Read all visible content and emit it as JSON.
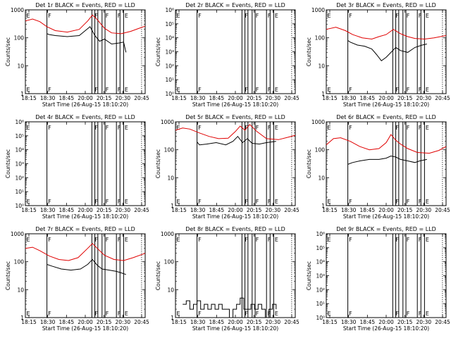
{
  "figure": {
    "time_ticks": [
      "18:15",
      "18:30",
      "18:45",
      "20:00",
      "20:15",
      "20:30",
      "20:45"
    ],
    "colors": {
      "events": "#000000",
      "lld": "#e00000",
      "frame": "#000000"
    }
  },
  "chart_data": [
    {
      "type": "line",
      "title": "Det 1r BLACK = Events, RED = LLD",
      "xlabel": "Start Time (26-Aug-15 18:10:20)",
      "ylabel": "Counts/sec",
      "y_scale": "log",
      "ylim": [
        1,
        1000
      ],
      "y_ticks": [
        "1",
        "10",
        "100",
        "1000"
      ],
      "markers": [
        {
          "label": "E",
          "x": 0.0
        },
        {
          "label": "F",
          "x": 0.18
        },
        {
          "label": "F",
          "x": 0.57
        },
        {
          "label": "F",
          "x": 0.66
        },
        {
          "label": "F",
          "x": 0.76
        },
        {
          "label": "E",
          "x": 0.82
        }
      ],
      "vlines": [
        0.18,
        0.555,
        0.58,
        0.605,
        0.64,
        0.665,
        0.76,
        0.79,
        0.82,
        0.97
      ],
      "series": [
        {
          "name": "Events",
          "color": "#000000",
          "x": [
            0.18,
            0.2,
            0.25,
            0.35,
            0.45,
            0.5,
            0.54,
            0.58,
            0.62,
            0.66,
            0.72,
            0.78,
            0.82,
            0.84
          ],
          "y": [
            140,
            130,
            120,
            110,
            120,
            180,
            250,
            120,
            75,
            90,
            60,
            65,
            70,
            30
          ]
        },
        {
          "name": "LLD",
          "color": "#e00000",
          "x": [
            0.0,
            0.06,
            0.12,
            0.18,
            0.25,
            0.35,
            0.45,
            0.52,
            0.56,
            0.6,
            0.66,
            0.72,
            0.8,
            0.88,
            0.95,
            1.0
          ],
          "y": [
            400,
            470,
            380,
            250,
            180,
            160,
            200,
            400,
            650,
            450,
            220,
            150,
            140,
            170,
            220,
            260
          ]
        }
      ]
    },
    {
      "type": "line",
      "title": "Det 2r BLACK = Events, RED = LLD",
      "xlabel": "Start Time (26-Aug-15 18:10:20)",
      "ylabel": "Counts/sec",
      "y_scale": "log",
      "ylim": [
        1,
        1000000
      ],
      "y_ticks": [
        "10⁰",
        "10¹",
        "10²",
        "10³",
        "10⁴",
        "10⁵",
        "10⁶"
      ],
      "markers": [
        {
          "label": "E",
          "x": 0.0
        },
        {
          "label": "F",
          "x": 0.18
        },
        {
          "label": "F",
          "x": 0.57
        },
        {
          "label": "F",
          "x": 0.66
        },
        {
          "label": "F",
          "x": 0.76
        },
        {
          "label": "E",
          "x": 0.82
        }
      ],
      "vlines": [
        0.18,
        0.555,
        0.58,
        0.605,
        0.64,
        0.665,
        0.76,
        0.79,
        0.82,
        0.97
      ],
      "series": []
    },
    {
      "type": "line",
      "title": "Det 3r BLACK = Events, RED = LLD",
      "xlabel": "Start Time (26-Aug-15 18:10:20)",
      "ylabel": "Counts/sec",
      "y_scale": "log",
      "ylim": [
        1,
        1000
      ],
      "y_ticks": [
        "1",
        "10",
        "100",
        "1000"
      ],
      "markers": [
        {
          "label": "E",
          "x": 0.0
        },
        {
          "label": "F",
          "x": 0.18
        },
        {
          "label": "F",
          "x": 0.57
        },
        {
          "label": "F",
          "x": 0.66
        },
        {
          "label": "F",
          "x": 0.76
        },
        {
          "label": "E",
          "x": 0.82
        }
      ],
      "vlines": [
        0.18,
        0.555,
        0.58,
        0.605,
        0.64,
        0.665,
        0.76,
        0.79,
        0.82,
        0.97
      ],
      "series": [
        {
          "name": "Events",
          "color": "#000000",
          "x": [
            0.18,
            0.2,
            0.26,
            0.32,
            0.38,
            0.42,
            0.46,
            0.5,
            0.54,
            0.58,
            0.62,
            0.68,
            0.74,
            0.8,
            0.84
          ],
          "y": [
            80,
            70,
            55,
            50,
            40,
            25,
            15,
            20,
            30,
            45,
            35,
            30,
            45,
            55,
            60
          ]
        },
        {
          "name": "LLD",
          "color": "#e00000",
          "x": [
            0.0,
            0.08,
            0.16,
            0.22,
            0.3,
            0.38,
            0.44,
            0.5,
            0.56,
            0.62,
            0.68,
            0.74,
            0.82,
            0.9,
            1.0
          ],
          "y": [
            200,
            240,
            180,
            130,
            100,
            90,
            110,
            130,
            200,
            140,
            110,
            95,
            90,
            100,
            120
          ]
        }
      ]
    },
    {
      "type": "line",
      "title": "Det 4r BLACK = Events, RED = LLD",
      "xlabel": "Start Time (26-Aug-15 18:10:20)",
      "ylabel": "Counts/sec",
      "y_scale": "log",
      "ylim": [
        1,
        1000000
      ],
      "y_ticks": [
        "10⁰",
        "10¹",
        "10²",
        "10³",
        "10⁴",
        "10⁵",
        "10⁶"
      ],
      "markers": [
        {
          "label": "E",
          "x": 0.0
        },
        {
          "label": "F",
          "x": 0.18
        },
        {
          "label": "F",
          "x": 0.57
        },
        {
          "label": "F",
          "x": 0.66
        },
        {
          "label": "F",
          "x": 0.76
        },
        {
          "label": "E",
          "x": 0.82
        }
      ],
      "vlines": [
        0.18,
        0.555,
        0.58,
        0.605,
        0.64,
        0.665,
        0.76,
        0.79,
        0.82,
        0.97
      ],
      "series": []
    },
    {
      "type": "line",
      "title": "Det 5r BLACK = Events, RED = LLD",
      "xlabel": "Start Time (26-Aug-15 18:10:20)",
      "ylabel": "Counts/sec",
      "y_scale": "log",
      "ylim": [
        1,
        1000
      ],
      "y_ticks": [
        "1",
        "10",
        "100",
        "1000"
      ],
      "markers": [
        {
          "label": "E",
          "x": 0.0
        },
        {
          "label": "F",
          "x": 0.18
        },
        {
          "label": "F",
          "x": 0.57
        },
        {
          "label": "F",
          "x": 0.66
        },
        {
          "label": "F",
          "x": 0.76
        },
        {
          "label": "E",
          "x": 0.82
        }
      ],
      "vlines": [
        0.18,
        0.555,
        0.58,
        0.605,
        0.64,
        0.665,
        0.76,
        0.79,
        0.82,
        0.97
      ],
      "series": [
        {
          "name": "Events",
          "color": "#000000",
          "x": [
            0.18,
            0.2,
            0.26,
            0.34,
            0.42,
            0.48,
            0.52,
            0.56,
            0.6,
            0.64,
            0.7,
            0.76,
            0.8,
            0.84
          ],
          "y": [
            190,
            150,
            160,
            180,
            150,
            200,
            300,
            180,
            250,
            170,
            160,
            180,
            190,
            200
          ]
        },
        {
          "name": "LLD",
          "color": "#e00000",
          "x": [
            0.0,
            0.06,
            0.12,
            0.2,
            0.28,
            0.36,
            0.44,
            0.5,
            0.54,
            0.58,
            0.62,
            0.68,
            0.76,
            0.86,
            0.94,
            1.0
          ],
          "y": [
            500,
            600,
            550,
            400,
            300,
            250,
            260,
            450,
            700,
            500,
            800,
            450,
            250,
            230,
            280,
            330
          ]
        }
      ]
    },
    {
      "type": "line",
      "title": "Det 6r BLACK = Events, RED = LLD",
      "xlabel": "Start Time (26-Aug-15 18:10:20)",
      "ylabel": "Counts/sec",
      "y_scale": "log",
      "ylim": [
        1,
        1000
      ],
      "y_ticks": [
        "1",
        "10",
        "100",
        "1000"
      ],
      "markers": [
        {
          "label": "E",
          "x": 0.0
        },
        {
          "label": "F",
          "x": 0.18
        },
        {
          "label": "F",
          "x": 0.57
        },
        {
          "label": "F",
          "x": 0.66
        },
        {
          "label": "F",
          "x": 0.76
        },
        {
          "label": "E",
          "x": 0.82
        }
      ],
      "vlines": [
        0.18,
        0.555,
        0.58,
        0.605,
        0.64,
        0.665,
        0.76,
        0.79,
        0.82,
        0.97
      ],
      "series": [
        {
          "name": "Events",
          "color": "#000000",
          "x": [
            0.18,
            0.22,
            0.28,
            0.36,
            0.44,
            0.5,
            0.54,
            0.58,
            0.62,
            0.68,
            0.74,
            0.78,
            0.84
          ],
          "y": [
            30,
            35,
            40,
            45,
            45,
            50,
            60,
            55,
            45,
            40,
            35,
            40,
            45
          ]
        },
        {
          "name": "LLD",
          "color": "#e00000",
          "x": [
            0.0,
            0.06,
            0.12,
            0.2,
            0.28,
            0.36,
            0.44,
            0.5,
            0.54,
            0.58,
            0.62,
            0.68,
            0.76,
            0.86,
            0.94,
            1.0
          ],
          "y": [
            150,
            250,
            270,
            200,
            130,
            100,
            110,
            180,
            350,
            220,
            160,
            110,
            80,
            75,
            95,
            130
          ]
        }
      ]
    },
    {
      "type": "line",
      "title": "Det 7r BLACK = Events, RED = LLD",
      "xlabel": "Start Time (26-Aug-15 18:10:20)",
      "ylabel": "Counts/sec",
      "y_scale": "log",
      "ylim": [
        1,
        1000
      ],
      "y_ticks": [
        "1",
        "10",
        "100",
        "1000"
      ],
      "markers": [
        {
          "label": "E",
          "x": 0.0
        },
        {
          "label": "F",
          "x": 0.18
        },
        {
          "label": "F",
          "x": 0.57
        },
        {
          "label": "F",
          "x": 0.66
        },
        {
          "label": "F",
          "x": 0.76
        },
        {
          "label": "E",
          "x": 0.82
        }
      ],
      "vlines": [
        0.18,
        0.555,
        0.58,
        0.605,
        0.64,
        0.665,
        0.76,
        0.79,
        0.82,
        0.97
      ],
      "series": [
        {
          "name": "Events",
          "color": "#000000",
          "x": [
            0.18,
            0.22,
            0.3,
            0.38,
            0.46,
            0.52,
            0.56,
            0.6,
            0.64,
            0.7,
            0.76,
            0.8,
            0.84
          ],
          "y": [
            80,
            70,
            55,
            50,
            55,
            80,
            120,
            75,
            55,
            50,
            45,
            40,
            35
          ]
        },
        {
          "name": "LLD",
          "color": "#e00000",
          "x": [
            0.0,
            0.06,
            0.12,
            0.2,
            0.28,
            0.36,
            0.44,
            0.52,
            0.56,
            0.6,
            0.66,
            0.74,
            0.82,
            0.9,
            1.0
          ],
          "y": [
            300,
            330,
            250,
            160,
            120,
            110,
            140,
            300,
            450,
            300,
            170,
            120,
            110,
            140,
            200
          ]
        }
      ]
    },
    {
      "type": "line",
      "title": "Det 8r BLACK = Events, RED = LLD",
      "xlabel": "Start Time (26-Aug-15 18:10:20)",
      "ylabel": "Counts/sec",
      "y_scale": "log",
      "ylim": [
        1,
        1000
      ],
      "y_ticks": [
        "1",
        "10",
        "100",
        "1000"
      ],
      "markers": [
        {
          "label": "E",
          "x": 0.0
        },
        {
          "label": "F",
          "x": 0.18
        },
        {
          "label": "F",
          "x": 0.57
        },
        {
          "label": "F",
          "x": 0.66
        },
        {
          "label": "F",
          "x": 0.76
        },
        {
          "label": "E",
          "x": 0.82
        }
      ],
      "vlines": [
        0.18,
        0.555,
        0.58,
        0.605,
        0.64,
        0.665,
        0.76,
        0.79,
        0.82,
        0.97
      ],
      "series": [
        {
          "name": "Events",
          "color": "#000000",
          "x": [
            0.06,
            0.09,
            0.12,
            0.15,
            0.18,
            0.21,
            0.24,
            0.27,
            0.3,
            0.33,
            0.36,
            0.39,
            0.42,
            0.45,
            0.48,
            0.51,
            0.54,
            0.57,
            0.6,
            0.63,
            0.66,
            0.69,
            0.72,
            0.75,
            0.78,
            0.81,
            0.84
          ],
          "y": [
            3,
            4,
            2,
            3,
            4,
            2,
            3,
            2,
            3,
            2,
            3,
            2,
            2,
            1,
            2,
            3,
            5,
            2,
            2,
            3,
            2,
            3,
            2,
            1,
            2,
            3,
            2
          ]
        }
      ]
    },
    {
      "type": "line",
      "title": "Det 9r BLACK = Events, RED = LLD",
      "xlabel": "Start Time (26-Aug-15 18:10:20)",
      "ylabel": "Counts/sec",
      "y_scale": "log",
      "ylim": [
        1,
        1000000
      ],
      "y_ticks": [
        "10⁰",
        "10¹",
        "10²",
        "10³",
        "10⁴",
        "10⁵",
        "10⁶"
      ],
      "markers": [
        {
          "label": "E",
          "x": 0.0
        },
        {
          "label": "F",
          "x": 0.18
        },
        {
          "label": "F",
          "x": 0.57
        },
        {
          "label": "F",
          "x": 0.66
        },
        {
          "label": "F",
          "x": 0.76
        },
        {
          "label": "E",
          "x": 0.82
        }
      ],
      "vlines": [
        0.18,
        0.555,
        0.58,
        0.605,
        0.64,
        0.665,
        0.76,
        0.79,
        0.82,
        0.97
      ],
      "series": []
    }
  ]
}
